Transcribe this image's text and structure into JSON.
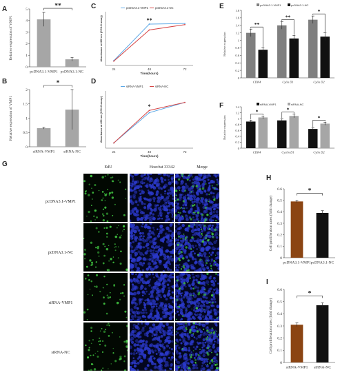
{
  "panel_labels": {
    "A": "A",
    "B": "B",
    "C": "C",
    "D": "D",
    "E": "E",
    "F": "F",
    "G": "G",
    "H": "H",
    "I": "I"
  },
  "colors": {
    "grey_bar": "#a6a6a6",
    "dark_bar": "#7f7f7f",
    "black_bar": "#111111",
    "brown_bar": "#8b4513",
    "line_blue": "#5aa7e6",
    "line_red": "#d64545",
    "edu_green": "#3fbf3f",
    "hoechst_blue": "#2a38c8"
  },
  "microscopy": {
    "columns": [
      "EdU",
      "Hoechst 33342",
      "Merge"
    ],
    "rows": [
      "pcDNA3.1-VMP1",
      "pcDNA3.1-NC",
      "siRNA-VMP1",
      "siRNA-NC"
    ]
  },
  "chart_data": [
    {
      "id": "A",
      "type": "bar",
      "categories": [
        "pcDNA3.1-VMP1",
        "pcDNA3.1-NC"
      ],
      "values": [
        4.1,
        0.65
      ],
      "errors": [
        0.6,
        0.15
      ],
      "ylabel": "Relative expression of VMP1",
      "ylim": [
        0,
        5
      ],
      "yticks": [
        0,
        1,
        2,
        3,
        4,
        5
      ],
      "significance": "**"
    },
    {
      "id": "B",
      "type": "bar",
      "categories": [
        "siRNA-VMP1",
        "siRNA-NC"
      ],
      "values": [
        0.65,
        1.3
      ],
      "errors": [
        0.03,
        0.7
      ],
      "ylabel": "Relative expression of VMP1",
      "ylim": [
        0,
        2
      ],
      "yticks": [
        0,
        0.5,
        1,
        1.5,
        2
      ],
      "significance": "*"
    },
    {
      "id": "C",
      "type": "line",
      "x": [
        "24",
        "48",
        "72"
      ],
      "series": [
        {
          "name": "pcDNA3.1-VMP1",
          "values": [
            0.45,
            3.85,
            3.9
          ]
        },
        {
          "name": "pcDNA3.1-NC",
          "values": [
            0.4,
            3.3,
            3.8
          ]
        }
      ],
      "xlabel": "Time(hours)",
      "ylabel": "Absorbance at 450 nm (CCK-8 assay)",
      "ylim": [
        0,
        5
      ],
      "significance": "**"
    },
    {
      "id": "D",
      "type": "line",
      "x": [
        "24",
        "48",
        "72"
      ],
      "series": [
        {
          "name": "siRNA-VMP1",
          "values": [
            0.45,
            3.1,
            4.0
          ]
        },
        {
          "name": "siRNA-NC",
          "values": [
            0.45,
            3.3,
            4.0
          ]
        }
      ],
      "xlabel": "Time(hours)",
      "ylabel": "Absorbance at 450 nm (CCK-8 assay)",
      "ylim": [
        0,
        5
      ],
      "significance": "*"
    },
    {
      "id": "E",
      "type": "bar",
      "categories": [
        "CDK4",
        "Cylin D1",
        "Cylin D2"
      ],
      "series": [
        {
          "name": "pcDNA3.1-VMP1",
          "values": [
            1.2,
            1.4,
            1.55
          ],
          "errors": [
            0.1,
            0.1,
            0.1
          ]
        },
        {
          "name": "pcDNA3.1-NC",
          "values": [
            0.75,
            1.05,
            1.1
          ],
          "errors": [
            0.06,
            0.08,
            0.1
          ]
        }
      ],
      "ylabel": "Relative expression",
      "ylim": [
        0,
        1.8
      ],
      "yticks": [
        0,
        0.2,
        0.4,
        0.6,
        0.8,
        1,
        1.2,
        1.4,
        1.6,
        1.8
      ],
      "significance": [
        "**",
        "**",
        "*"
      ]
    },
    {
      "id": "F",
      "type": "bar",
      "categories": [
        "CDK4",
        "Cyclin D1",
        "Cylin D2"
      ],
      "series": [
        {
          "name": "siRNA-VMP1",
          "values": [
            0.9,
            0.94,
            0.65
          ],
          "errors": [
            0.05,
            0.06,
            0.05
          ]
        },
        {
          "name": "siRNA-NC",
          "values": [
            1.04,
            1.09,
            0.83
          ],
          "errors": [
            0.05,
            0.06,
            0.05
          ]
        }
      ],
      "ylabel": "Relative expression",
      "ylim": [
        0,
        1.4
      ],
      "yticks": [
        0,
        0.2,
        0.4,
        0.6,
        0.8,
        1,
        1.2,
        1.4
      ],
      "significance": [
        "*",
        "*",
        "*"
      ]
    },
    {
      "id": "H",
      "type": "bar",
      "categories": [
        "pcDNA3.1-VMP1",
        "pcDNA3.1-NC"
      ],
      "values": [
        0.49,
        0.39
      ],
      "errors": [
        0.01,
        0.02
      ],
      "ylabel": "Cell proliferation rates (fold change)",
      "ylim": [
        0,
        0.6
      ],
      "yticks": [
        0,
        0.1,
        0.2,
        0.3,
        0.4,
        0.5,
        0.6
      ],
      "significance": "*"
    },
    {
      "id": "I",
      "type": "bar",
      "categories": [
        "siRNA-VMP1",
        "siRNA-NC"
      ],
      "values": [
        0.31,
        0.47
      ],
      "errors": [
        0.015,
        0.02
      ],
      "ylabel": "Cell proliferation rates (fold change)",
      "ylim": [
        0,
        0.6
      ],
      "yticks": [
        0,
        0.1,
        0.2,
        0.3,
        0.4,
        0.5,
        0.6
      ],
      "significance": "*"
    }
  ]
}
